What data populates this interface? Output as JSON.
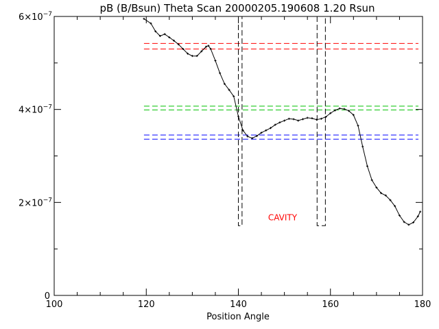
{
  "chart_data": {
    "type": "line",
    "title": "pB (B/Bsun) Theta Scan 20000205.190608 1.20 Rsun",
    "xlabel": "Position Angle",
    "ylabel": "",
    "xlim": [
      100,
      180
    ],
    "ylim": [
      0,
      6e-07
    ],
    "x_ticks": [
      100,
      120,
      140,
      160,
      180
    ],
    "x_tick_labels": [
      "100",
      "120",
      "140",
      "160",
      "180"
    ],
    "y_ticks": [
      0,
      2e-07,
      4e-07,
      6e-07
    ],
    "y_tick_labels": [
      {
        "mantissa": "0",
        "exp": ""
      },
      {
        "mantissa": "2×10",
        "exp": "−7"
      },
      {
        "mantissa": "4×10",
        "exp": "−7"
      },
      {
        "mantissa": "6×10",
        "exp": "−7"
      }
    ],
    "series": [
      {
        "color": "#000000",
        "style": "solid-line-with-plus-markers",
        "x": [
          119.5,
          121,
          122,
          123,
          124,
          125,
          126,
          127,
          128,
          129,
          130,
          131,
          132,
          133,
          133.5,
          134,
          135,
          136,
          137,
          138,
          139,
          140,
          141,
          142,
          143,
          144,
          145,
          146,
          147,
          148,
          149,
          150,
          151,
          152,
          153,
          154,
          155,
          156,
          157,
          158,
          159,
          160,
          161,
          162,
          163,
          164,
          165,
          166,
          167,
          168,
          169,
          170,
          171,
          172,
          173,
          174,
          175,
          176,
          177,
          178,
          179,
          179.5
        ],
        "y": [
          5.95e-07,
          5.85e-07,
          5.68e-07,
          5.58e-07,
          5.62e-07,
          5.55e-07,
          5.48e-07,
          5.4e-07,
          5.3e-07,
          5.2e-07,
          5.15e-07,
          5.15e-07,
          5.25e-07,
          5.35e-07,
          5.37e-07,
          5.3e-07,
          5.05e-07,
          4.78e-07,
          4.55e-07,
          4.42e-07,
          4.28e-07,
          3.85e-07,
          3.55e-07,
          3.42e-07,
          3.38e-07,
          3.43e-07,
          3.5e-07,
          3.55e-07,
          3.6e-07,
          3.67e-07,
          3.72e-07,
          3.76e-07,
          3.8e-07,
          3.79e-07,
          3.76e-07,
          3.79e-07,
          3.82e-07,
          3.81e-07,
          3.78e-07,
          3.8e-07,
          3.84e-07,
          3.92e-07,
          3.98e-07,
          4.02e-07,
          4.01e-07,
          3.97e-07,
          3.88e-07,
          3.65e-07,
          3.2e-07,
          2.78e-07,
          2.48e-07,
          2.32e-07,
          2.2e-07,
          2.15e-07,
          2.05e-07,
          1.92e-07,
          1.72e-07,
          1.58e-07,
          1.52e-07,
          1.57e-07,
          1.7e-07,
          1.8e-07
        ]
      }
    ],
    "hlines": [
      {
        "y": 5.42e-07,
        "color": "#ff0000",
        "style": "dashed"
      },
      {
        "y": 5.3e-07,
        "color": "#ff0000",
        "style": "dashed"
      },
      {
        "y": 4.07e-07,
        "color": "#00c000",
        "style": "dashed"
      },
      {
        "y": 3.99e-07,
        "color": "#00c000",
        "style": "dashed"
      },
      {
        "y": 3.45e-07,
        "color": "#0000ff",
        "style": "dashed"
      },
      {
        "y": 3.36e-07,
        "color": "#0000ff",
        "style": "dashed"
      }
    ],
    "vline_boxes": [
      {
        "x0": 140.0,
        "x1": 140.8,
        "y_bottom": 1.5e-07,
        "y_top": 6e-07,
        "color": "#000000",
        "style": "dashed"
      },
      {
        "x0": 157.1,
        "x1": 158.9,
        "y_bottom": 1.5e-07,
        "y_top": 6e-07,
        "color": "#000000",
        "style": "dashed"
      }
    ],
    "annotations": [
      {
        "text": "CAVITY",
        "x": 149.6,
        "y": 1.67e-07,
        "color": "#ff0000"
      }
    ],
    "grid": false,
    "legend": "none"
  }
}
